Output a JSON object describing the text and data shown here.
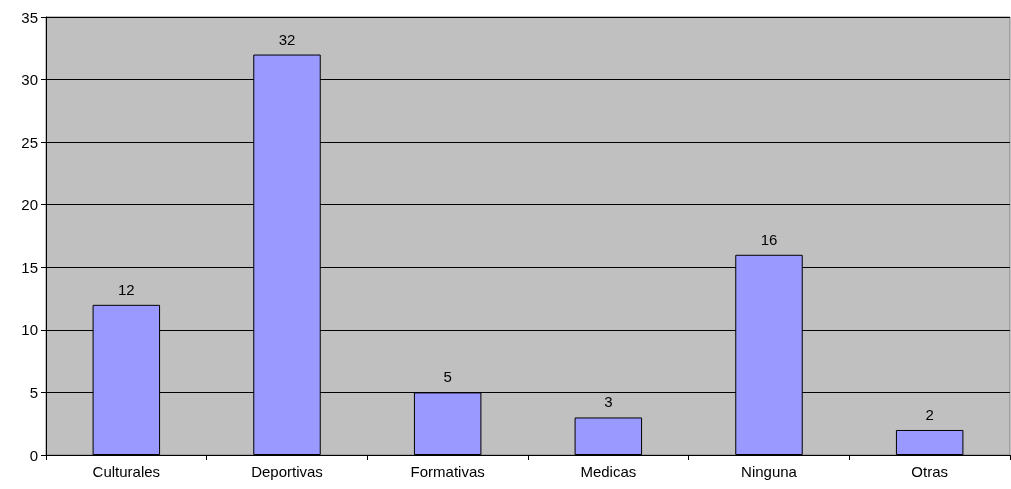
{
  "chart_data": {
    "type": "bar",
    "categories": [
      "Culturales",
      "Deportivas",
      "Formativas",
      "Medicas",
      "Ninguna",
      "Otras"
    ],
    "values": [
      12,
      32,
      5,
      3,
      16,
      2
    ],
    "color": "#9999ff",
    "ylim": [
      0,
      35
    ],
    "yticks": [
      0,
      5,
      10,
      15,
      20,
      25,
      30,
      35
    ],
    "grid": "y",
    "data_labels": true
  }
}
